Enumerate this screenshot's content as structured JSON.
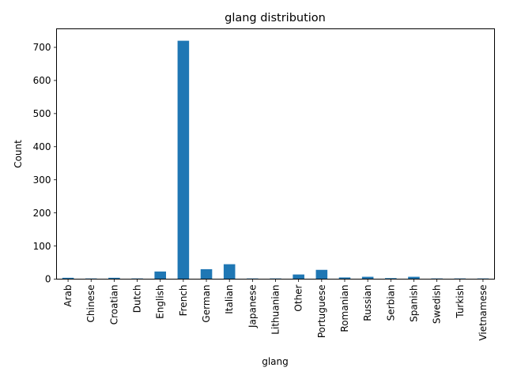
{
  "chart_data": {
    "type": "bar",
    "title": "glang distribution",
    "xlabel": "glang",
    "ylabel": "Count",
    "categories": [
      "Arab",
      "Chinese",
      "Croatian",
      "Dutch",
      "English",
      "French",
      "German",
      "Italian",
      "Japanese",
      "Lithuanian",
      "Other",
      "Portuguese",
      "Romanian",
      "Russian",
      "Serbian",
      "Spanish",
      "Swedish",
      "Turkish",
      "Vietnamese"
    ],
    "values": [
      4,
      2,
      4,
      2,
      23,
      720,
      30,
      45,
      2,
      2,
      14,
      28,
      5,
      7,
      3,
      7,
      2,
      2,
      2
    ],
    "yticks": [
      0,
      100,
      200,
      300,
      400,
      500,
      600,
      700
    ],
    "ylim": [
      0,
      756
    ],
    "bar_color": "#1f77b4",
    "grid": false,
    "legend": "none"
  }
}
